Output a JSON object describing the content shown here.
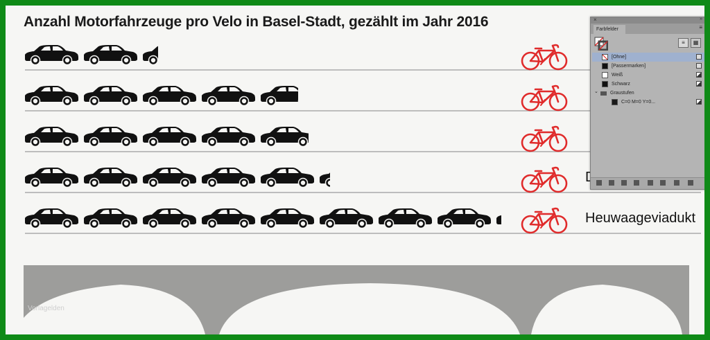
{
  "title": "Anzahl Motorfahrzeuge pro Velo in Basel-Stadt, gezählt im Jahr 2016",
  "colors": {
    "frame": "#0f8a17",
    "background": "#f6f6f4",
    "car": "#111111",
    "bike": "#e02b2b",
    "bridge": "#9d9d9b",
    "line": "#bdbdbd"
  },
  "chart_data": {
    "type": "pictogram",
    "unit_icon": "car-icon",
    "per_unit_icon": "bicycle-icon",
    "rows": [
      {
        "label": "",
        "value": 2.3
      },
      {
        "label": "",
        "value": 4.7
      },
      {
        "label": "",
        "value": 4.9
      },
      {
        "label": "Dorenbachviadukt",
        "value": 5.2
      },
      {
        "label": "Heuwaageviadukt",
        "value": 8.1
      }
    ]
  },
  "watermark": "Vorlagelden",
  "panel": {
    "tab": "Farbfelder",
    "swatches": [
      {
        "name": "[Ohne]",
        "chip": "none",
        "selected": true,
        "icon": "no-print-icon"
      },
      {
        "name": "[Passermarken]",
        "chip": "#111111",
        "selected": false,
        "icon": "registration-icon"
      },
      {
        "name": "Weiß",
        "chip": "#ffffff",
        "selected": false,
        "icon": "process-color-icon"
      },
      {
        "name": "Schwarz",
        "chip": "#111111",
        "selected": false,
        "icon": "process-color-icon"
      },
      {
        "name": "Graustufen",
        "chip": "folder",
        "selected": false,
        "icon": ""
      },
      {
        "name": "C=0 M=0 Y=0...",
        "chip": "#1a1a1a",
        "selected": false,
        "icon": "process-color-icon"
      }
    ]
  }
}
